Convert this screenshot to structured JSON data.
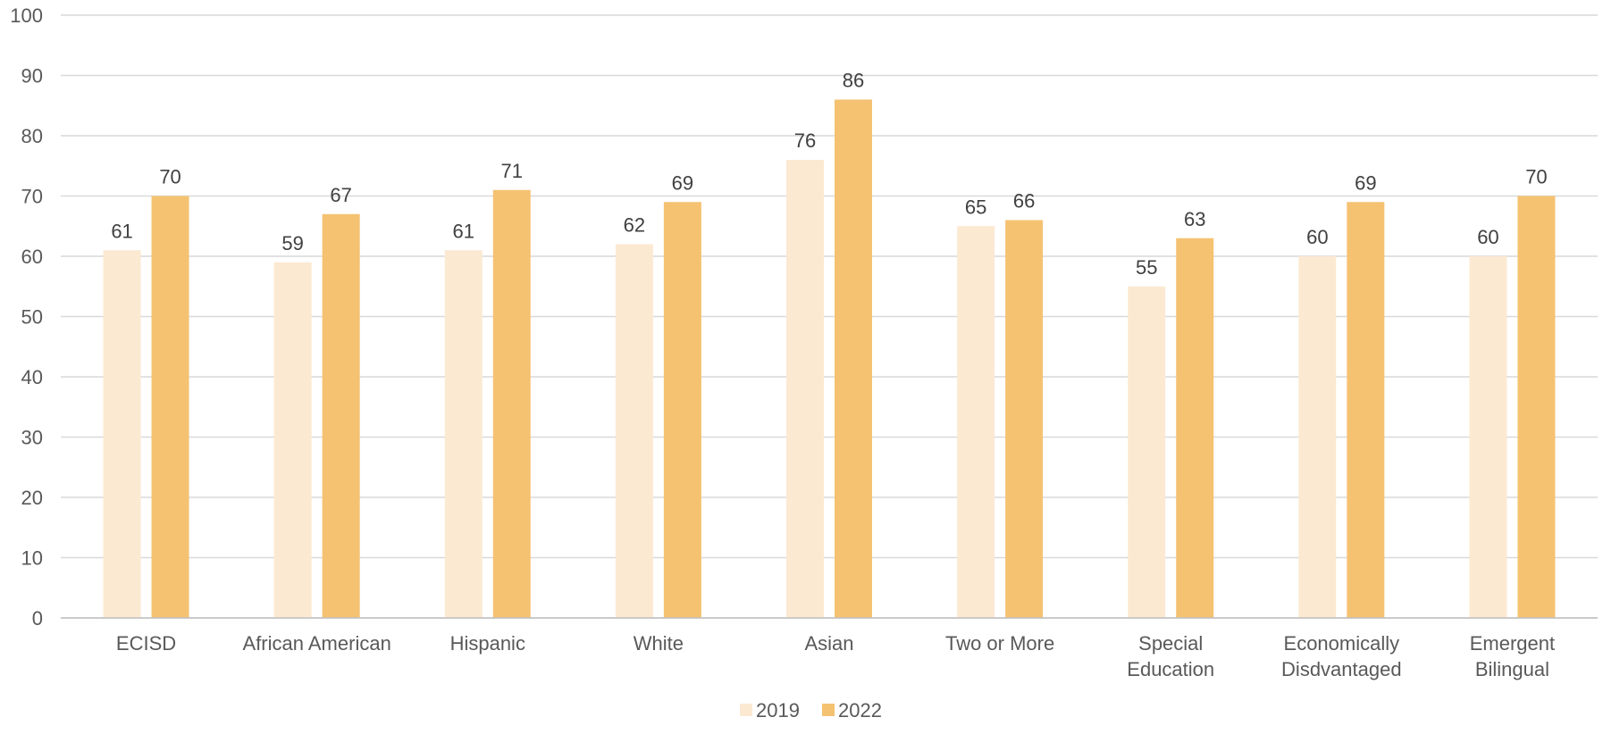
{
  "chart_data": {
    "type": "bar",
    "title": "",
    "xlabel": "",
    "ylabel": "",
    "ylim": [
      0,
      100
    ],
    "yticks": [
      0,
      10,
      20,
      30,
      40,
      50,
      60,
      70,
      80,
      90,
      100
    ],
    "grid": true,
    "legend_position": "bottom",
    "categories": [
      [
        "ECISD"
      ],
      [
        "African American"
      ],
      [
        "Hispanic"
      ],
      [
        "White"
      ],
      [
        "Asian"
      ],
      [
        "Two or More"
      ],
      [
        "Special",
        "Education"
      ],
      [
        "Economically",
        "Disdvantaged"
      ],
      [
        "Emergent",
        "Bilingual"
      ]
    ],
    "series": [
      {
        "name": "2019",
        "color": "#FCE9D2",
        "values": [
          61,
          59,
          61,
          62,
          76,
          65,
          55,
          60,
          60
        ]
      },
      {
        "name": "2022",
        "color": "#F5C272",
        "values": [
          70,
          67,
          71,
          69,
          86,
          66,
          63,
          69,
          70
        ]
      }
    ]
  }
}
